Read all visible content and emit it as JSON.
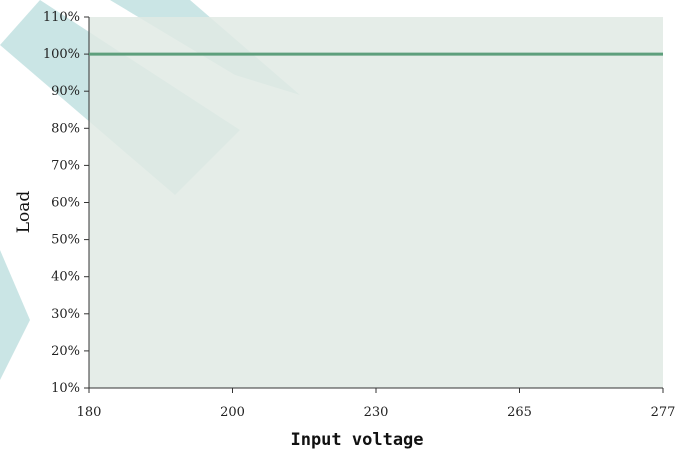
{
  "chart_data": {
    "type": "line",
    "xlabel": "Input voltage",
    "ylabel": "Load",
    "x_categories": [
      "180",
      "200",
      "230",
      "265",
      "277"
    ],
    "y_ticks": [
      "10%",
      "20%",
      "30%",
      "40%",
      "50%",
      "60%",
      "70%",
      "80%",
      "90%",
      "100%",
      "110%"
    ],
    "ylim": [
      10,
      110
    ],
    "series": [
      {
        "x": [
          "180",
          "277"
        ],
        "values": [
          100,
          100
        ]
      }
    ],
    "colors": {
      "plot_bg": "#e0eae4",
      "line": "#5e9f7c",
      "axis": "#333333",
      "watermark": "#9fd0d0"
    }
  }
}
